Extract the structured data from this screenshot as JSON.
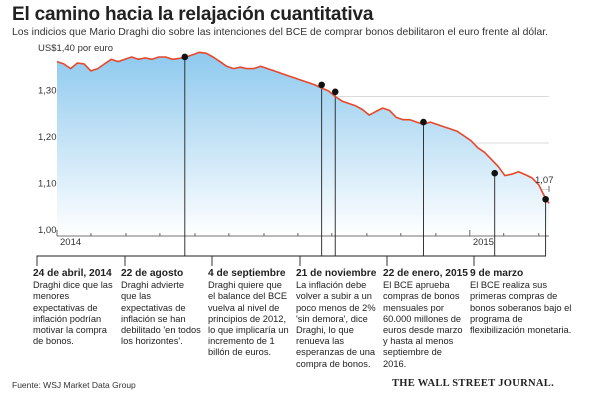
{
  "header": {
    "title": "El camino hacia la relajación cuantitativa",
    "subtitle": "Los indicios que Mario Draghi dio sobre las intenciones del BCE de comprar bonos debilitaron el euro frente al dólar."
  },
  "chart_data": {
    "type": "area",
    "ylabel": "US$1,40 por euro",
    "ylim": [
      1.0,
      1.4
    ],
    "yticks": [
      {
        "value": 1.3,
        "label": "1,30"
      },
      {
        "value": 1.2,
        "label": "1,20"
      },
      {
        "value": 1.1,
        "label": "1,10"
      },
      {
        "value": 1.0,
        "label": "1,00"
      }
    ],
    "xticks": [
      {
        "x": 0,
        "label": "2014"
      },
      {
        "x": 365,
        "label": "2015"
      }
    ],
    "xlim": [
      0,
      435
    ],
    "end_label": "1,07",
    "x_unit": "days from 1 Jan 2014",
    "series": [
      {
        "points": [
          [
            0,
            1.375
          ],
          [
            6,
            1.37
          ],
          [
            12,
            1.36
          ],
          [
            18,
            1.372
          ],
          [
            24,
            1.37
          ],
          [
            30,
            1.355
          ],
          [
            36,
            1.36
          ],
          [
            42,
            1.37
          ],
          [
            48,
            1.38
          ],
          [
            54,
            1.375
          ],
          [
            60,
            1.38
          ],
          [
            66,
            1.385
          ],
          [
            72,
            1.38
          ],
          [
            78,
            1.383
          ],
          [
            84,
            1.38
          ],
          [
            90,
            1.385
          ],
          [
            96,
            1.385
          ],
          [
            102,
            1.38
          ],
          [
            108,
            1.382
          ],
          [
            114,
            1.385
          ],
          [
            120,
            1.39
          ],
          [
            126,
            1.395
          ],
          [
            132,
            1.393
          ],
          [
            138,
            1.385
          ],
          [
            144,
            1.375
          ],
          [
            150,
            1.365
          ],
          [
            156,
            1.36
          ],
          [
            162,
            1.363
          ],
          [
            168,
            1.36
          ],
          [
            174,
            1.36
          ],
          [
            180,
            1.365
          ],
          [
            186,
            1.36
          ],
          [
            192,
            1.355
          ],
          [
            198,
            1.35
          ],
          [
            204,
            1.345
          ],
          [
            210,
            1.34
          ],
          [
            216,
            1.335
          ],
          [
            222,
            1.33
          ],
          [
            228,
            1.325
          ],
          [
            234,
            1.318
          ],
          [
            240,
            1.312
          ],
          [
            246,
            1.3
          ],
          [
            252,
            1.29
          ],
          [
            258,
            1.285
          ],
          [
            264,
            1.28
          ],
          [
            270,
            1.272
          ],
          [
            276,
            1.26
          ],
          [
            282,
            1.268
          ],
          [
            288,
            1.275
          ],
          [
            294,
            1.27
          ],
          [
            300,
            1.255
          ],
          [
            306,
            1.25
          ],
          [
            312,
            1.25
          ],
          [
            318,
            1.245
          ],
          [
            324,
            1.24
          ],
          [
            330,
            1.245
          ],
          [
            336,
            1.24
          ],
          [
            342,
            1.235
          ],
          [
            348,
            1.23
          ],
          [
            354,
            1.225
          ],
          [
            360,
            1.215
          ],
          [
            366,
            1.205
          ],
          [
            372,
            1.19
          ],
          [
            378,
            1.18
          ],
          [
            384,
            1.165
          ],
          [
            390,
            1.15
          ],
          [
            396,
            1.13
          ],
          [
            402,
            1.133
          ],
          [
            408,
            1.138
          ],
          [
            414,
            1.132
          ],
          [
            420,
            1.125
          ],
          [
            426,
            1.11
          ],
          [
            430,
            1.09
          ],
          [
            435,
            1.07
          ]
        ]
      }
    ],
    "annotations": [
      {
        "x": 113,
        "y": 1.385,
        "label_x": 33,
        "date": "24 de abril, 2014",
        "text": "Draghi dice que las menores expectativas de inflación podrían motivar la compra de bonos."
      },
      {
        "x": 234,
        "y": 1.325,
        "label_x": 121,
        "date": "22 de agosto",
        "text": "Draghi advierte que las expectativas de inflación se han debilitado 'en todos los horizontes'."
      },
      {
        "x": 246,
        "y": 1.31,
        "label_x": 208,
        "date": "4 de septiembre",
        "text": "Draghi quiere que el balance del BCE vuelva al nivel de principios de 2012, lo que implicaría un incremento de 1 billón de euros."
      },
      {
        "x": 324,
        "y": 1.245,
        "label_x": 296,
        "date": "21 de noviembre",
        "text": "La inflación debe volver a subir a un poco menos de 2% 'sin demora', dice Draghi, lo que renueva las esperanzas de una compra de bonos."
      },
      {
        "x": 387,
        "y": 1.135,
        "label_x": 383,
        "date": "22 de enero, 2015",
        "text": "El BCE aprueba compras de bonos mensuales por 60.000 millones de euros desde marzo y hasta al menos septiembre de 2016."
      },
      {
        "x": 432,
        "y": 1.079,
        "label_x": 470,
        "date": "9 de marzo",
        "text": "El BCE realiza sus primeras compras de bonos soberanos bajo el programa de flexibilización monetaria."
      }
    ],
    "colors": {
      "line": "#e8472a",
      "area_top": "#8ec9ee",
      "area_bottom": "#ffffff",
      "marker": "#111111",
      "leader": "#222222"
    }
  },
  "footer": {
    "source": "Fuente: WSJ Market Data Group",
    "brand": "THE WALL STREET JOURNAL."
  }
}
